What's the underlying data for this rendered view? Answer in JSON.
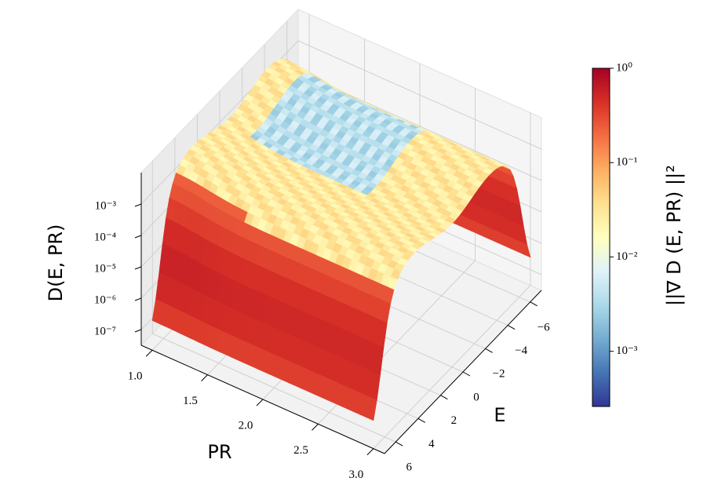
{
  "chart_data": {
    "type": "surface3d",
    "xlabel": "PR",
    "ylabel": "E",
    "zlabel": "D(E, PR)",
    "xlim": [
      0.9,
      3.1
    ],
    "xticks": [
      {
        "value": 1,
        "label": "1.0"
      },
      1.5,
      {
        "value": 2,
        "label": "2.0"
      },
      2.5,
      {
        "value": 3,
        "label": "3.0"
      }
    ],
    "ylim": [
      -7,
      7
    ],
    "yticks": [
      {
        "value": -6,
        "label": "−6"
      },
      {
        "value": -4,
        "label": "−4"
      },
      {
        "value": -2,
        "label": "−2"
      },
      0,
      2,
      4,
      6
    ],
    "zscale": "log",
    "zlim": [
      3.16e-08,
      0.01
    ],
    "zticks": [
      {
        "value": 1e-07,
        "label": "10⁻⁷"
      },
      {
        "value": 1e-06,
        "label": "10⁻⁶"
      },
      {
        "value": 1e-05,
        "label": "10⁻⁵"
      },
      {
        "value": 0.0001,
        "label": "10⁻⁴"
      },
      {
        "value": 0.001,
        "label": "10⁻³"
      }
    ],
    "grid": true,
    "colorbar": {
      "label": "||∇ D (E, PR) ||²",
      "scale": "log",
      "lim": [
        0.00026,
        1
      ],
      "ticks": [
        {
          "value": 0.001,
          "label": "10⁻³"
        },
        {
          "value": 0.01,
          "label": "10⁻²"
        },
        {
          "value": 0.1,
          "label": "10⁻¹"
        },
        {
          "value": 1,
          "label": "10⁰"
        }
      ],
      "colormap": [
        "#313695",
        "#4575b4",
        "#74add1",
        "#abd9e9",
        "#e0f3f8",
        "#ffffbf",
        "#fee090",
        "#fdae61",
        "#f46d43",
        "#d73027",
        "#a50026"
      ]
    }
  }
}
